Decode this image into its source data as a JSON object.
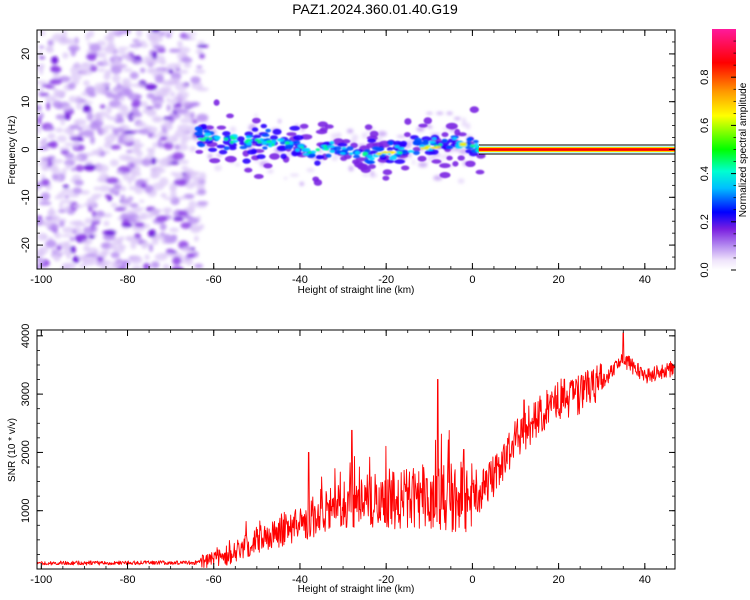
{
  "title": "PAZ1.2024.360.01.40.G19",
  "chart_data": [
    {
      "type": "heatmap",
      "xlabel": "Height of straight line (km)",
      "ylabel": "Frequency (Hz)",
      "xlim": [
        -101,
        47
      ],
      "ylim": [
        -25,
        25
      ],
      "xticks": [
        -100,
        -80,
        -60,
        -40,
        -20,
        0,
        20,
        40
      ],
      "yticks": [
        -20,
        -10,
        0,
        10,
        20
      ],
      "xticklabels": [
        "-100",
        "-80",
        "-60",
        "-40",
        "-20",
        "0",
        "20",
        "40"
      ],
      "yticklabels": [
        "-20",
        "-10",
        "0",
        "10",
        "20"
      ],
      "colorbar": {
        "label": "Normalized spectral amplitude",
        "range": [
          0,
          1
        ],
        "ticks": [
          0.0,
          0.2,
          0.4,
          0.6,
          0.8
        ],
        "ticklabels": [
          "0.0",
          "0.2",
          "0.4",
          "0.6",
          "0.8"
        ],
        "colors": [
          "#f4ecfc",
          "#c9a6f5",
          "#8a2be2",
          "#0000ff",
          "#00e5ff",
          "#00ff00",
          "#ffff00",
          "#ff8000",
          "#ff0000",
          "#ff1aa3"
        ]
      },
      "noise_region_x": [
        -101,
        -64
      ],
      "signal_center_track": [
        {
          "x": -64,
          "y": 2.5
        },
        {
          "x": -55,
          "y": 2.0
        },
        {
          "x": -45,
          "y": 1.5
        },
        {
          "x": -38,
          "y": -0.5
        },
        {
          "x": -32,
          "y": 0.5
        },
        {
          "x": -25,
          "y": -1.0
        },
        {
          "x": -18,
          "y": -0.5
        },
        {
          "x": -10,
          "y": 0.5
        },
        {
          "x": -3,
          "y": 1.5
        },
        {
          "x": 2,
          "y": 0.0
        },
        {
          "x": 47,
          "y": 0.0
        }
      ]
    },
    {
      "type": "line",
      "xlabel": "Height of straight line (km)",
      "ylabel": "SNR (10 * v/v)",
      "xlim": [
        -101,
        47
      ],
      "ylim": [
        0,
        4100
      ],
      "xticks": [
        -100,
        -80,
        -60,
        -40,
        -20,
        0,
        20,
        40
      ],
      "yticks": [
        1000,
        2000,
        3000,
        4000
      ],
      "xticklabels": [
        "-100",
        "-80",
        "-60",
        "-40",
        "-20",
        "0",
        "20",
        "40"
      ],
      "yticklabels": [
        "1000",
        "2000",
        "3000",
        "4000"
      ],
      "series": [
        {
          "color": "#ff0000",
          "trend": [
            {
              "x": -101,
              "y": 100
            },
            {
              "x": -64,
              "y": 110
            },
            {
              "x": -58,
              "y": 200
            },
            {
              "x": -50,
              "y": 500
            },
            {
              "x": -40,
              "y": 800
            },
            {
              "x": -30,
              "y": 1100
            },
            {
              "x": -20,
              "y": 1200
            },
            {
              "x": -10,
              "y": 1250
            },
            {
              "x": 0,
              "y": 1150
            },
            {
              "x": 5,
              "y": 1600
            },
            {
              "x": 10,
              "y": 2200
            },
            {
              "x": 15,
              "y": 2600
            },
            {
              "x": 20,
              "y": 2900
            },
            {
              "x": 25,
              "y": 3000
            },
            {
              "x": 30,
              "y": 3200
            },
            {
              "x": 35,
              "y": 3600
            },
            {
              "x": 40,
              "y": 3300
            },
            {
              "x": 47,
              "y": 3450
            }
          ],
          "peaks": [
            {
              "x": -38,
              "y": 2000
            },
            {
              "x": -28,
              "y": 2380
            },
            {
              "x": -8,
              "y": 3250
            },
            {
              "x": -2,
              "y": 2050
            },
            {
              "x": 12,
              "y": 2900
            },
            {
              "x": 35,
              "y": 4050
            }
          ]
        }
      ]
    }
  ]
}
